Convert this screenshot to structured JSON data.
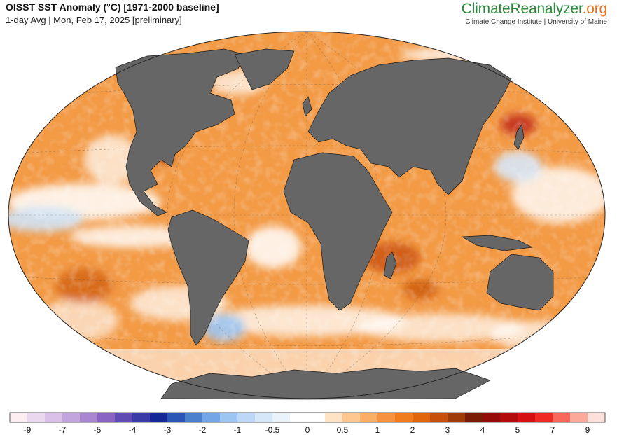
{
  "header": {
    "title": "OISST SST Anomaly (°C) [1971-2000 baseline]",
    "subtitle": "1-day Avg | Mon, Feb 17, 2025 [preliminary]"
  },
  "brand": {
    "name_part1": "ClimateReanalyzer",
    "name_part2": ".org",
    "tagline": "Climate Change Institute | University of Maine"
  },
  "map": {
    "projection": "Winkel Tripel",
    "land_color": "#666666",
    "ocean_base_color": "#f39a45"
  },
  "legend": {
    "colors": [
      "#fdeef2",
      "#ead8ee",
      "#d8c0e6",
      "#c3a5dd",
      "#a985d2",
      "#8a64c5",
      "#5e4bb3",
      "#3a3aa8",
      "#152796",
      "#2a56b8",
      "#4b80cf",
      "#72a6e6",
      "#9cc5f2",
      "#bcd8f6",
      "#d6e7fa",
      "#eaf3fc",
      "#ffffff",
      "#ffffff",
      "#fee3c4",
      "#fdc890",
      "#fbae66",
      "#f7923e",
      "#f07c1e",
      "#e2650b",
      "#c84f09",
      "#a03a07",
      "#7a1c05",
      "#950a0a",
      "#b30b0b",
      "#d60f0f",
      "#f02a22",
      "#f9685a",
      "#fca89b",
      "#fde0dc"
    ],
    "tick_labels": [
      "-9",
      "-7",
      "-5",
      "-4",
      "-3",
      "-2",
      "-1",
      "-0.5",
      "0",
      "0.5",
      "1",
      "2",
      "3",
      "4",
      "5",
      "7",
      "9"
    ]
  }
}
